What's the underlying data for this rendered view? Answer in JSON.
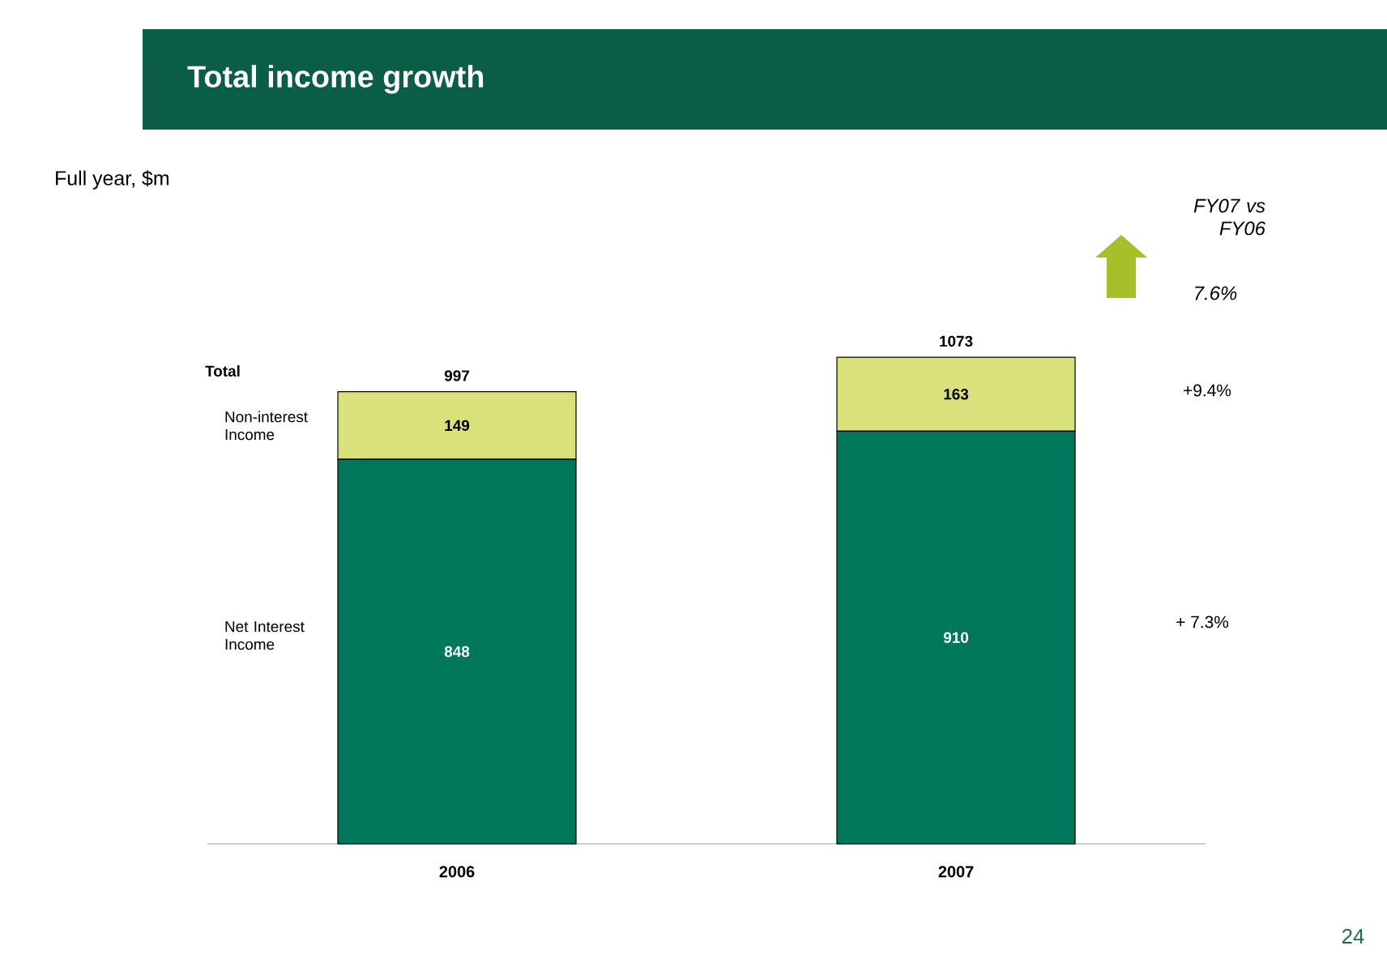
{
  "chart_data": {
    "type": "bar",
    "stacked": true,
    "title": "Total income growth",
    "subtitle": "Full year, $m",
    "categories": [
      "2006",
      "2007"
    ],
    "series": [
      {
        "name": "Net Interest Income",
        "color": "#00775a",
        "values": [
          848,
          910
        ]
      },
      {
        "name": "Non-interest Income",
        "color": "#d9e27a",
        "values": [
          149,
          163
        ]
      }
    ],
    "totals": [
      "997",
      "1073"
    ],
    "data_labels": true,
    "legend": false,
    "annotations": [
      "Total",
      "FY07 vs FY06",
      "7.6%",
      "+9.4%",
      "+ 7.3%",
      "24"
    ]
  }
}
